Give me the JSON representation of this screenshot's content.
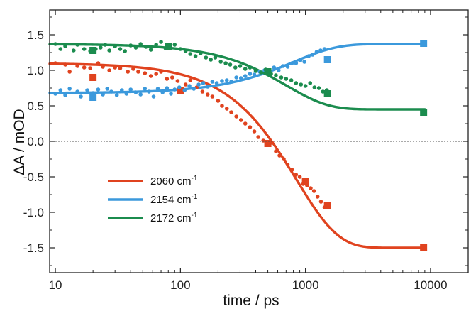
{
  "chart_data": {
    "type": "scatter",
    "title": "",
    "x_scale": "log",
    "xlabel": "time / ps",
    "ylabel": "ΔA / mOD",
    "xlim": [
      9,
      20000
    ],
    "ylim": [
      -1.85,
      1.85
    ],
    "x_ticks": [
      10,
      100,
      1000,
      10000
    ],
    "x_tick_labels": [
      "10",
      "100",
      "1000",
      "10000"
    ],
    "y_ticks": [
      -1.5,
      -1.0,
      -0.5,
      0.0,
      0.5,
      1.0,
      1.5
    ],
    "y_tick_labels": [
      "-1.5",
      "-1.0",
      "-0.5",
      "0.0",
      "0.5",
      "1.0",
      "1.5"
    ],
    "zero_line": true,
    "legend_position": "lower-left",
    "series": [
      {
        "name": "2060 cm",
        "superscript": "-1",
        "color": "#e0431f",
        "fit": {
          "start": 1.1,
          "end": -1.5,
          "tau_ps": 850,
          "stretch": 1.3
        },
        "squares": [
          [
            20,
            0.9
          ],
          [
            100,
            0.72
          ],
          [
            500,
            -0.03
          ],
          [
            1000,
            -0.57
          ],
          [
            1500,
            -0.9
          ],
          [
            8800,
            -1.5
          ]
        ],
        "dots": [
          [
            10,
            1.1
          ],
          [
            12,
            1.08
          ],
          [
            13,
            0.98
          ],
          [
            15,
            1.06
          ],
          [
            17,
            1.04
          ],
          [
            19,
            1.03
          ],
          [
            22,
            1.1
          ],
          [
            24,
            1.05
          ],
          [
            27,
            1.0
          ],
          [
            30,
            1.04
          ],
          [
            33,
            1.03
          ],
          [
            38,
            0.98
          ],
          [
            42,
            1.02
          ],
          [
            46,
            0.98
          ],
          [
            52,
            0.96
          ],
          [
            58,
            0.92
          ],
          [
            64,
            0.95
          ],
          [
            70,
            0.98
          ],
          [
            78,
            0.88
          ],
          [
            86,
            0.9
          ],
          [
            95,
            0.85
          ],
          [
            110,
            0.8
          ],
          [
            120,
            0.86
          ],
          [
            135,
            0.76
          ],
          [
            150,
            0.7
          ],
          [
            165,
            0.66
          ],
          [
            180,
            0.63
          ],
          [
            200,
            0.57
          ],
          [
            215,
            0.5
          ],
          [
            235,
            0.46
          ],
          [
            255,
            0.41
          ],
          [
            280,
            0.35
          ],
          [
            305,
            0.3
          ],
          [
            330,
            0.25
          ],
          [
            360,
            0.2
          ],
          [
            390,
            0.14
          ],
          [
            420,
            0.06
          ],
          [
            460,
            0.01
          ],
          [
            500,
            -0.05
          ],
          [
            540,
            -0.02
          ],
          [
            580,
            -0.14
          ],
          [
            620,
            -0.2
          ],
          [
            670,
            -0.25
          ],
          [
            720,
            -0.33
          ],
          [
            780,
            -0.4
          ],
          [
            840,
            -0.47
          ],
          [
            900,
            -0.5
          ],
          [
            960,
            -0.6
          ],
          [
            1030,
            -0.62
          ],
          [
            1100,
            -0.66
          ],
          [
            1170,
            -0.7
          ],
          [
            1250,
            -0.78
          ],
          [
            1330,
            -0.85
          ],
          [
            1420,
            -0.93
          ]
        ]
      },
      {
        "name": "2154 cm",
        "superscript": "-1",
        "color": "#3b99dc",
        "fit": {
          "start": 0.68,
          "end": 1.37,
          "tau_ps": 800,
          "stretch": 1.25
        },
        "squares": [
          [
            20,
            0.62
          ],
          [
            1500,
            1.15
          ],
          [
            8800,
            1.38
          ]
        ],
        "dots": [
          [
            10,
            0.67
          ],
          [
            11,
            0.72
          ],
          [
            12,
            0.65
          ],
          [
            13,
            0.74
          ],
          [
            15,
            0.7
          ],
          [
            16,
            0.63
          ],
          [
            18,
            0.72
          ],
          [
            20,
            0.68
          ],
          [
            22,
            0.73
          ],
          [
            24,
            0.66
          ],
          [
            26,
            0.74
          ],
          [
            28,
            0.7
          ],
          [
            31,
            0.65
          ],
          [
            34,
            0.72
          ],
          [
            37,
            0.67
          ],
          [
            40,
            0.73
          ],
          [
            44,
            0.69
          ],
          [
            48,
            0.66
          ],
          [
            52,
            0.74
          ],
          [
            56,
            0.7
          ],
          [
            61,
            0.63
          ],
          [
            66,
            0.74
          ],
          [
            72,
            0.69
          ],
          [
            78,
            0.75
          ],
          [
            84,
            0.67
          ],
          [
            90,
            0.73
          ],
          [
            98,
            0.76
          ],
          [
            108,
            0.72
          ],
          [
            118,
            0.78
          ],
          [
            128,
            0.74
          ],
          [
            140,
            0.8
          ],
          [
            152,
            0.82
          ],
          [
            165,
            0.77
          ],
          [
            180,
            0.84
          ],
          [
            195,
            0.82
          ],
          [
            215,
            0.85
          ],
          [
            235,
            0.86
          ],
          [
            255,
            0.84
          ],
          [
            280,
            0.9
          ],
          [
            305,
            0.89
          ],
          [
            330,
            0.92
          ],
          [
            360,
            0.95
          ],
          [
            390,
            0.94
          ],
          [
            430,
            0.98
          ],
          [
            470,
            1.0
          ],
          [
            520,
            0.97
          ],
          [
            560,
            1.04
          ],
          [
            610,
            1.0
          ],
          [
            660,
            1.06
          ],
          [
            720,
            1.05
          ],
          [
            780,
            1.1
          ],
          [
            840,
            1.1
          ],
          [
            910,
            1.14
          ],
          [
            980,
            1.12
          ],
          [
            1060,
            1.2
          ],
          [
            1140,
            1.22
          ],
          [
            1230,
            1.26
          ],
          [
            1320,
            1.28
          ],
          [
            1420,
            1.3
          ]
        ]
      },
      {
        "name": "2172 cm",
        "superscript": "-1",
        "color": "#1b8c4e",
        "fit": {
          "start": 1.37,
          "end": 0.45,
          "tau_ps": 700,
          "stretch": 1.3
        },
        "squares": [
          [
            20,
            1.28
          ],
          [
            80,
            1.33
          ],
          [
            500,
            0.98
          ],
          [
            1500,
            0.67
          ],
          [
            8800,
            0.4
          ]
        ],
        "dots": [
          [
            10,
            1.37
          ],
          [
            11,
            1.3
          ],
          [
            12,
            1.34
          ],
          [
            14,
            1.28
          ],
          [
            15,
            1.36
          ],
          [
            17,
            1.3
          ],
          [
            19,
            1.27
          ],
          [
            21,
            1.3
          ],
          [
            23,
            1.32
          ],
          [
            25,
            1.36
          ],
          [
            27,
            1.28
          ],
          [
            30,
            1.34
          ],
          [
            33,
            1.3
          ],
          [
            36,
            1.27
          ],
          [
            40,
            1.35
          ],
          [
            44,
            1.32
          ],
          [
            48,
            1.37
          ],
          [
            53,
            1.33
          ],
          [
            58,
            1.29
          ],
          [
            64,
            1.36
          ],
          [
            70,
            1.4
          ],
          [
            76,
            1.31
          ],
          [
            83,
            1.34
          ],
          [
            90,
            1.36
          ],
          [
            100,
            1.3
          ],
          [
            110,
            1.27
          ],
          [
            120,
            1.23
          ],
          [
            132,
            1.2
          ],
          [
            145,
            1.24
          ],
          [
            160,
            1.18
          ],
          [
            175,
            1.15
          ],
          [
            190,
            1.18
          ],
          [
            210,
            1.12
          ],
          [
            230,
            1.1
          ],
          [
            250,
            1.08
          ],
          [
            275,
            1.04
          ],
          [
            300,
            1.06
          ],
          [
            330,
            1.02
          ],
          [
            360,
            1.04
          ],
          [
            400,
            0.99
          ],
          [
            440,
            0.97
          ],
          [
            480,
            1.01
          ],
          [
            530,
            0.95
          ],
          [
            580,
            0.93
          ],
          [
            640,
            0.9
          ],
          [
            700,
            0.88
          ],
          [
            770,
            0.86
          ],
          [
            840,
            0.82
          ],
          [
            920,
            0.8
          ],
          [
            1000,
            0.78
          ],
          [
            1090,
            0.82
          ],
          [
            1180,
            0.76
          ],
          [
            1280,
            0.75
          ],
          [
            1380,
            0.7
          ],
          [
            1480,
            0.72
          ]
        ]
      }
    ]
  }
}
